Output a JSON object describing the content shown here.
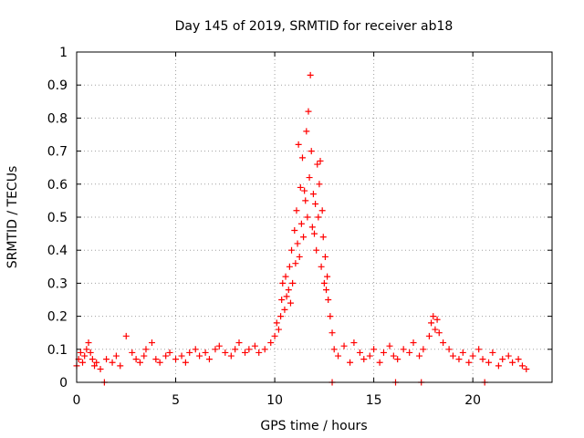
{
  "chart_data": {
    "type": "scatter",
    "title": "Day 145 of 2019, SRMTID for receiver ab18",
    "xlabel": "GPS time / hours",
    "ylabel": "SRMTID / TECUs",
    "xlim": [
      0,
      24
    ],
    "ylim": [
      0,
      1
    ],
    "grid": true,
    "marker": "+",
    "x_ticks": [
      0,
      5,
      10,
      15,
      20
    ],
    "y_ticks": [
      0,
      0.1,
      0.2,
      0.3,
      0.4,
      0.5,
      0.6,
      0.7,
      0.8,
      0.9,
      1
    ],
    "y_tick_labels": [
      "0",
      "0.1",
      "0.2",
      "0.3",
      "0.4",
      "0.5",
      "0.6",
      "0.7",
      "0.8",
      "0.9",
      "1"
    ],
    "color": "#ff0000",
    "series": [
      {
        "name": "SRMTID",
        "x": [
          0.0,
          0.1,
          0.2,
          0.3,
          0.4,
          0.5,
          0.6,
          0.7,
          0.8,
          0.9,
          1.0,
          1.2,
          1.5,
          1.8,
          2.0,
          2.2,
          2.5,
          2.8,
          3.0,
          3.2,
          3.4,
          3.5,
          3.8,
          4.0,
          4.2,
          4.5,
          4.7,
          5.0,
          5.3,
          5.5,
          5.7,
          6.0,
          6.2,
          6.5,
          6.7,
          7.0,
          7.2,
          7.5,
          7.8,
          8.0,
          8.2,
          8.5,
          8.7,
          9.0,
          9.2,
          9.5,
          9.8,
          10.0,
          10.1,
          10.2,
          10.3,
          10.35,
          10.4,
          10.5,
          10.55,
          10.6,
          10.7,
          10.75,
          10.8,
          10.85,
          10.9,
          11.0,
          11.05,
          11.1,
          11.15,
          11.2,
          11.25,
          11.3,
          11.35,
          11.4,
          11.45,
          11.5,
          11.55,
          11.6,
          11.65,
          11.7,
          11.75,
          11.8,
          11.85,
          11.9,
          11.95,
          12.0,
          12.05,
          12.1,
          12.15,
          12.2,
          12.25,
          12.3,
          12.35,
          12.4,
          12.45,
          12.5,
          12.55,
          12.6,
          12.65,
          12.7,
          12.8,
          12.9,
          13.0,
          13.2,
          13.5,
          13.8,
          14.0,
          14.3,
          14.5,
          14.8,
          15.0,
          15.3,
          15.5,
          15.8,
          16.0,
          16.2,
          16.5,
          16.8,
          17.0,
          17.3,
          17.5,
          17.8,
          17.9,
          18.0,
          18.1,
          18.2,
          18.3,
          18.5,
          18.8,
          19.0,
          19.3,
          19.5,
          19.8,
          20.0,
          20.3,
          20.5,
          20.8,
          21.0,
          21.3,
          21.5,
          21.8,
          22.0,
          22.3,
          22.5,
          22.7,
          1.4,
          12.9,
          16.1,
          17.4,
          20.6
        ],
        "y": [
          0.05,
          0.07,
          0.09,
          0.06,
          0.08,
          0.1,
          0.12,
          0.09,
          0.07,
          0.05,
          0.06,
          0.04,
          0.07,
          0.06,
          0.08,
          0.05,
          0.14,
          0.09,
          0.07,
          0.06,
          0.08,
          0.1,
          0.12,
          0.07,
          0.06,
          0.08,
          0.09,
          0.07,
          0.08,
          0.06,
          0.09,
          0.1,
          0.08,
          0.09,
          0.07,
          0.1,
          0.11,
          0.09,
          0.08,
          0.1,
          0.12,
          0.09,
          0.1,
          0.11,
          0.09,
          0.1,
          0.12,
          0.14,
          0.18,
          0.16,
          0.2,
          0.25,
          0.3,
          0.22,
          0.32,
          0.26,
          0.28,
          0.35,
          0.24,
          0.4,
          0.3,
          0.46,
          0.36,
          0.52,
          0.42,
          0.72,
          0.38,
          0.59,
          0.48,
          0.68,
          0.44,
          0.58,
          0.55,
          0.76,
          0.5,
          0.82,
          0.62,
          0.93,
          0.7,
          0.47,
          0.57,
          0.45,
          0.54,
          0.4,
          0.66,
          0.5,
          0.6,
          0.67,
          0.35,
          0.52,
          0.44,
          0.3,
          0.38,
          0.28,
          0.32,
          0.25,
          0.2,
          0.15,
          0.1,
          0.08,
          0.11,
          0.06,
          0.12,
          0.09,
          0.07,
          0.08,
          0.1,
          0.06,
          0.09,
          0.11,
          0.08,
          0.07,
          0.1,
          0.09,
          0.12,
          0.08,
          0.1,
          0.14,
          0.18,
          0.2,
          0.16,
          0.19,
          0.15,
          0.12,
          0.1,
          0.08,
          0.07,
          0.09,
          0.06,
          0.08,
          0.1,
          0.07,
          0.06,
          0.09,
          0.05,
          0.07,
          0.08,
          0.06,
          0.07,
          0.05,
          0.04,
          0.0,
          0.0,
          0.0,
          0.0,
          0.0
        ]
      }
    ]
  }
}
